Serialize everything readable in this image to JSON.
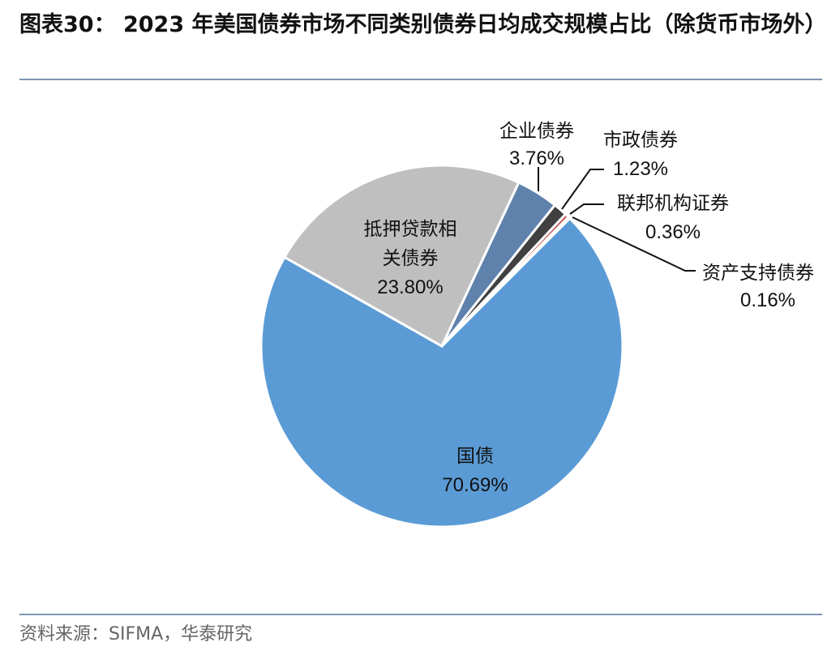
{
  "title": "图表30： 2023 年美国债券市场不同类别债券日均成交规模占比（除货币市场外）",
  "source": "资料来源：SIFMA，华泰研究",
  "chart_data": {
    "type": "pie",
    "title": "",
    "start_angle_deg": 45,
    "direction": "clockwise",
    "legend": "none",
    "slices": [
      {
        "label": "国债",
        "value": 70.69,
        "display": "70.69%",
        "color": "#5B9BD5"
      },
      {
        "label": "抵押贷款相关债券",
        "value": 23.8,
        "display": "23.80%",
        "color": "#BFBFBF"
      },
      {
        "label": "企业债券",
        "value": 3.76,
        "display": "3.76%",
        "color": "#5E82AC"
      },
      {
        "label": "市政债券",
        "value": 1.23,
        "display": "1.23%",
        "color": "#404040"
      },
      {
        "label": "联邦机构证券",
        "value": 0.36,
        "display": "0.36%",
        "color": "#C0504D"
      },
      {
        "label": "资产支持债券",
        "value": 0.16,
        "display": "0.16%",
        "color": "#F4B183"
      }
    ]
  }
}
